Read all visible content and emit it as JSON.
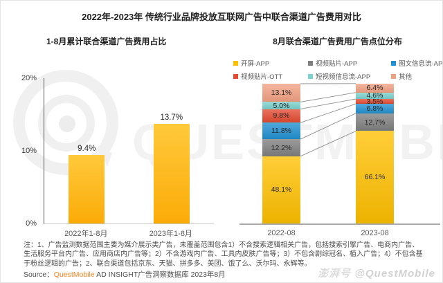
{
  "header": {
    "title": "2022年-2023年 传统行业品牌投放互联网广告中联合渠道广告费用对比"
  },
  "chart_data": [
    {
      "type": "bar",
      "title": "1-8月累计联合渠道广告费用占比",
      "categories": [
        "2022年1-8月",
        "2023年1-8月"
      ],
      "values": [
        9.4,
        13.7
      ],
      "data_labels": [
        "9.4%",
        "13.7%"
      ],
      "unit": "%",
      "ylim": [
        0,
        20
      ],
      "yticks": [
        0,
        10,
        20
      ],
      "grid": false,
      "bar_color": "#FFC000"
    },
    {
      "type": "bar",
      "subtype": "stacked-100-percent",
      "title": "8月联合渠道广告费用广告点位分布",
      "categories": [
        "2022-08",
        "2023-08"
      ],
      "stack_order": "bottom-to-top",
      "series": [
        {
          "name": "开屏-APP",
          "color": "#FFC000",
          "values": [
            48.1,
            66.1
          ]
        },
        {
          "name": "视频贴片-APP",
          "color": "#808080",
          "values": [
            12.2,
            12.7
          ]
        },
        {
          "name": "图文信息流-APP",
          "color": "#2191D2",
          "values": [
            11.8,
            6.8
          ]
        },
        {
          "name": "视频贴片-OTT",
          "color": "#E54B31",
          "values": [
            9.8,
            3.5
          ]
        },
        {
          "name": "短视频信息流-APP",
          "color": "#7BD2CE",
          "values": [
            5.0,
            4.6
          ]
        },
        {
          "name": "其他",
          "color": "#F2A183",
          "values": [
            13.1,
            6.4
          ]
        }
      ],
      "legend_position": "top",
      "connector_line_color": "#8c8c8c",
      "grid": false
    }
  ],
  "footer": {
    "note": "注：1、广告监测数据范围主要为媒介展示类广告，未覆盖范围包含1）不含搜索逻辑相关广告，包括搜索引擎广告、电商内广告、生活服务平台内广告、应用商店内广告等；2）不含游戏内广告、工具内皮肤广告等；3）不包含剧综冠名、植入广告；4）不包含基于粉丝逻辑的广告；2、联合渠道包括京东、天猫、拼多多、美团、饿了么、沃尔玛、永辉等。",
    "source_prefix": "Source：",
    "source_brand": "QuestMobile",
    "source_suffix": " AD INSIGHT广告洞察数据库 2023年8月"
  },
  "watermarks": {
    "big_text": "QUESTMOBILE",
    "platform": "澎湃号",
    "account": "@QuestMobile"
  },
  "colors": {
    "brand_orange": "#F5821F",
    "bar_yellow": "#FFC000"
  }
}
